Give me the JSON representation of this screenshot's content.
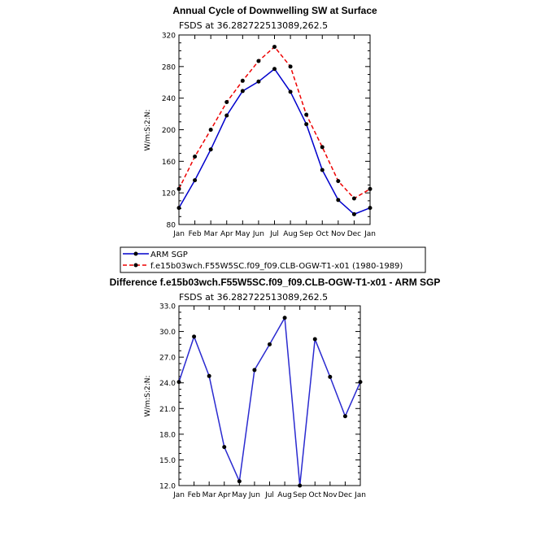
{
  "colors": {
    "obs": "#0000cc",
    "model": "#ee0000",
    "diff": "#2a2ad0",
    "marker": "#000000"
  },
  "chart_data": [
    {
      "type": "line",
      "title": "Annual Cycle of Downwelling SW at Surface",
      "subtitle": "FSDS at 36.282722513089,262.5",
      "xlabel": "",
      "ylabel": "W/m:S:2:N:",
      "categories": [
        "Jan",
        "Feb",
        "Mar",
        "Apr",
        "May",
        "Jun",
        "Jul",
        "Aug",
        "Sep",
        "Oct",
        "Nov",
        "Dec",
        "Jan"
      ],
      "yticks": [
        "80",
        "120",
        "160",
        "200",
        "240",
        "280",
        "320"
      ],
      "ylim": [
        80,
        320
      ],
      "series": [
        {
          "name": "ARM SGP",
          "color_key": "obs",
          "dash": "solid",
          "values": [
            101,
            136,
            175,
            218,
            249,
            261,
            277,
            248,
            207,
            149,
            111,
            93,
            101
          ]
        },
        {
          "name": "f.e15b03wch.F55W5SC.f09_f09.CLB-OGW-T1-x01 (1980-1989)",
          "color_key": "model",
          "dash": "dashed",
          "values": [
            125,
            166,
            200,
            235,
            262,
            287,
            305,
            280,
            219,
            178,
            135,
            113,
            125
          ]
        }
      ],
      "legend": "below"
    },
    {
      "type": "line",
      "title": "Difference f.e15b03wch.F55W5SC.f09_f09.CLB-OGW-T1-x01 - ARM SGP",
      "subtitle": "FSDS at 36.282722513089,262.5",
      "xlabel": "",
      "ylabel": "W/m:S:2:N:",
      "categories": [
        "Jan",
        "Feb",
        "Mar",
        "Apr",
        "May",
        "Jun",
        "Jul",
        "Aug",
        "Sep",
        "Oct",
        "Nov",
        "Dec",
        "Jan"
      ],
      "yticks": [
        "12.0",
        "15.0",
        "18.0",
        "21.0",
        "24.0",
        "27.0",
        "30.0",
        "33.0"
      ],
      "ylim": [
        12,
        33
      ],
      "series": [
        {
          "color_key": "diff",
          "dash": "solid",
          "values": [
            24.1,
            29.4,
            24.8,
            16.5,
            12.5,
            25.5,
            28.5,
            31.6,
            12.0,
            29.1,
            24.7,
            20.1,
            24.1
          ]
        }
      ]
    }
  ]
}
